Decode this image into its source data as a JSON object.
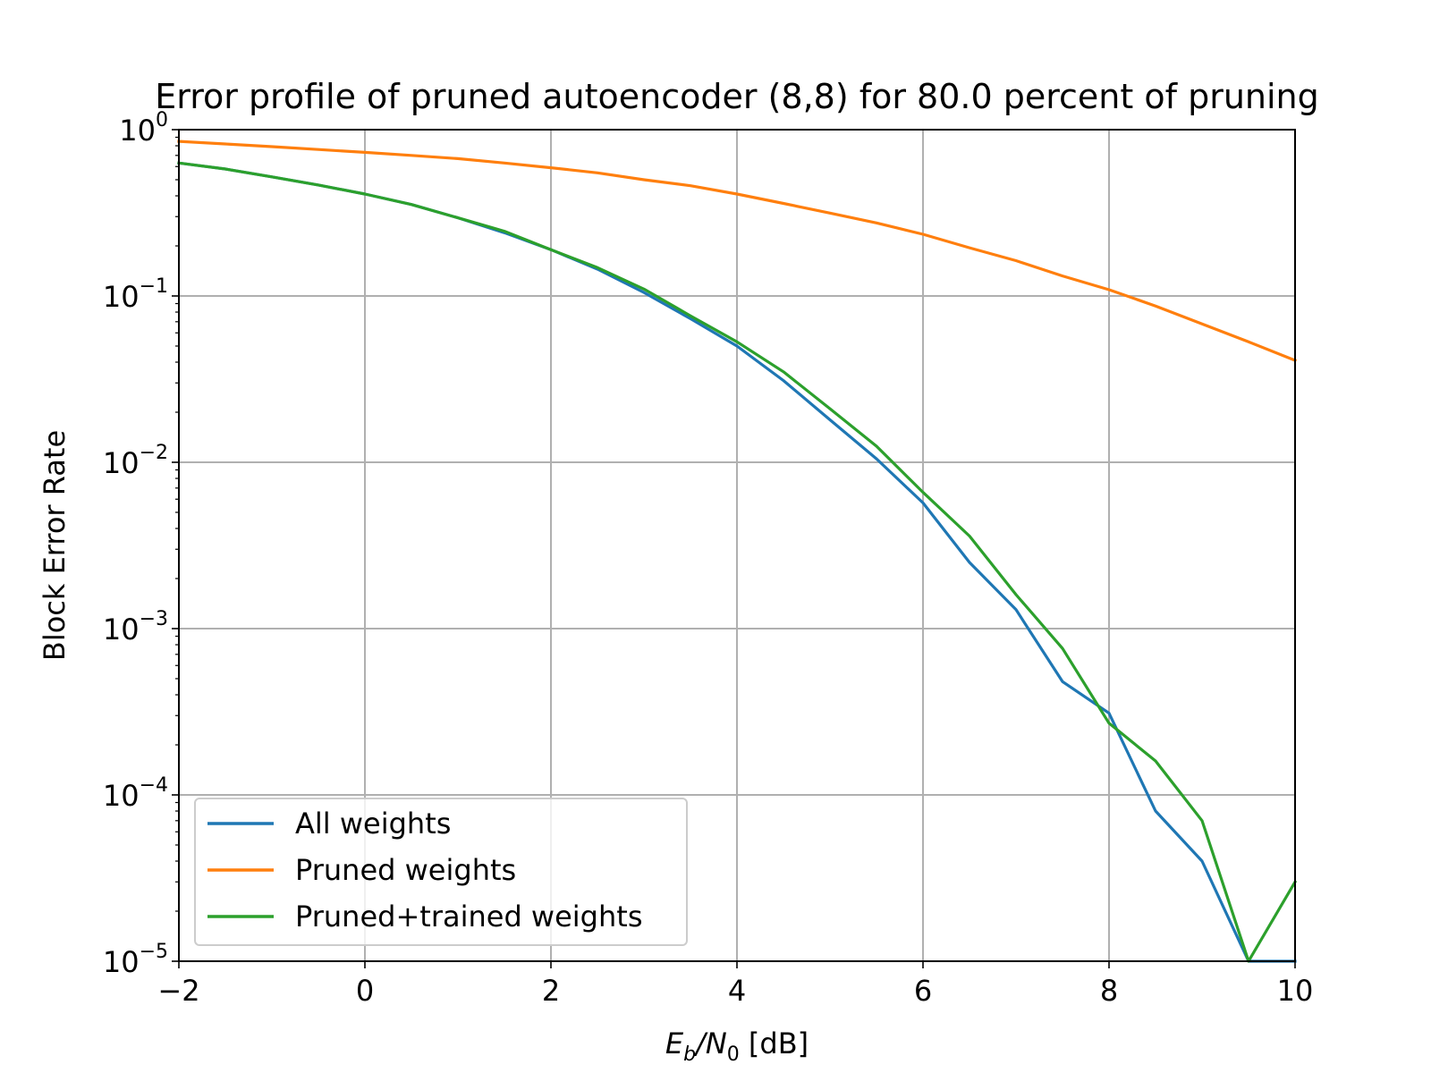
{
  "chart_data": {
    "type": "line",
    "title": "Error profile of pruned autoencoder (8,8) for 80.0 percent of pruning",
    "xlabel": {
      "main": "E",
      "sub1": "b",
      "mid": "/N",
      "sub2": "0",
      "tail": " [dB]"
    },
    "ylabel": "Block Error Rate",
    "yscale": "log",
    "xlim": [
      -2,
      10
    ],
    "ylim": [
      1e-05,
      1
    ],
    "grid": true,
    "legend_position": "lower-left",
    "x_ticks": [
      {
        "value": -2,
        "label": "−2"
      },
      {
        "value": 0,
        "label": "0"
      },
      {
        "value": 2,
        "label": "2"
      },
      {
        "value": 4,
        "label": "4"
      },
      {
        "value": 6,
        "label": "6"
      },
      {
        "value": 8,
        "label": "8"
      },
      {
        "value": 10,
        "label": "10"
      }
    ],
    "y_ticks": [
      {
        "value": 1,
        "base": "10",
        "exp": "0"
      },
      {
        "value": 0.1,
        "base": "10",
        "exp": "−1"
      },
      {
        "value": 0.01,
        "base": "10",
        "exp": "−2"
      },
      {
        "value": 0.001,
        "base": "10",
        "exp": "−3"
      },
      {
        "value": 0.0001,
        "base": "10",
        "exp": "−4"
      },
      {
        "value": 1e-05,
        "base": "10",
        "exp": "−5"
      }
    ],
    "x": [
      -2,
      -1.5,
      -1,
      -0.5,
      0,
      0.5,
      1,
      1.5,
      2,
      2.5,
      3,
      3.5,
      4,
      4.5,
      5,
      5.5,
      6,
      6.5,
      7,
      7.5,
      8,
      8.5,
      9,
      9.5,
      10
    ],
    "series": [
      {
        "name": "All weights",
        "color": "#1f77b4",
        "values": [
          0.63,
          0.58,
          0.52,
          0.465,
          0.41,
          0.355,
          0.295,
          0.24,
          0.19,
          0.145,
          0.105,
          0.073,
          0.05,
          0.031,
          0.018,
          0.0105,
          0.0057,
          0.0025,
          0.0013,
          0.00048,
          0.00031,
          8e-05,
          4e-05,
          1e-05,
          1e-05
        ]
      },
      {
        "name": "Pruned weights",
        "color": "#ff7f0e",
        "values": [
          0.85,
          0.82,
          0.79,
          0.76,
          0.73,
          0.7,
          0.67,
          0.63,
          0.59,
          0.55,
          0.5,
          0.46,
          0.41,
          0.36,
          0.315,
          0.275,
          0.235,
          0.195,
          0.163,
          0.132,
          0.109,
          0.087,
          0.068,
          0.053,
          0.041
        ]
      },
      {
        "name": "Pruned+trained weights",
        "color": "#2ca02c",
        "values": [
          0.63,
          0.58,
          0.52,
          0.465,
          0.41,
          0.355,
          0.295,
          0.245,
          0.19,
          0.148,
          0.11,
          0.076,
          0.053,
          0.035,
          0.021,
          0.0125,
          0.0066,
          0.0036,
          0.0016,
          0.00076,
          0.00027,
          0.00016,
          7e-05,
          1e-05,
          3e-05
        ]
      }
    ]
  }
}
